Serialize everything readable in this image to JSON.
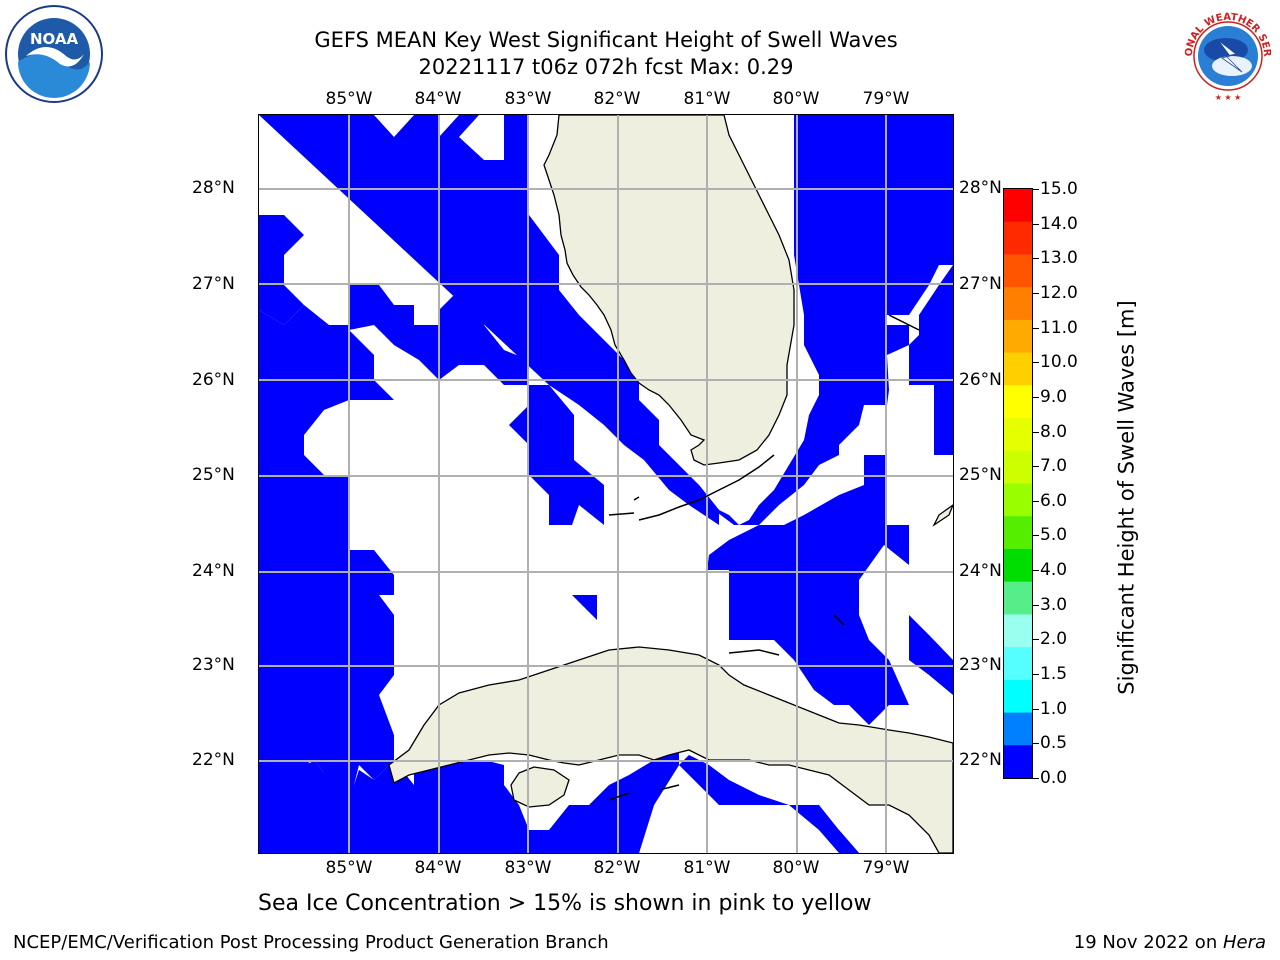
{
  "title": {
    "line1": "GEFS MEAN Key West Significant Height of Swell Waves",
    "line2": "20221117 t06z 072h fcst   Max: 0.29"
  },
  "logos": {
    "left": {
      "icon": "noaa-logo-icon",
      "text": "NOAA"
    },
    "right": {
      "icon": "nws-logo-icon",
      "text": "NATIONAL WEATHER SERVICE"
    }
  },
  "map": {
    "longitude_labels": [
      "85°W",
      "84°W",
      "83°W",
      "82°W",
      "81°W",
      "80°W",
      "79°W"
    ],
    "latitude_labels": [
      "28°N",
      "27°N",
      "26°N",
      "25°N",
      "24°N",
      "23°N",
      "22°N"
    ],
    "colors": {
      "ocean_field": "#0000ff",
      "land": "#efefdf",
      "gridlines": "#b0b0b0",
      "coastline": "#000000",
      "background": "#ffffff"
    }
  },
  "colorbar": {
    "label": "Significant Height of Swell Waves [m]",
    "tick_labels": [
      "15.0",
      "14.0",
      "13.0",
      "12.0",
      "11.0",
      "10.0",
      "9.0",
      "8.0",
      "7.0",
      "6.0",
      "5.0",
      "4.0",
      "3.0",
      "2.0",
      "1.5",
      "1.0",
      "0.5",
      "0.0"
    ],
    "colors_top_to_bottom": [
      "#ff0000",
      "#ff2a00",
      "#ff5500",
      "#ff8000",
      "#ffaa00",
      "#ffd000",
      "#ffff00",
      "#e6ff00",
      "#ccff00",
      "#99ff00",
      "#55ee00",
      "#00dd00",
      "#55ee88",
      "#99ffee",
      "#55ffff",
      "#00ffff",
      "#0080ff",
      "#0000ff"
    ]
  },
  "note": "Sea Ice Concentration > 15% is shown in pink to yellow",
  "footer": {
    "left": "NCEP/EMC/Verification Post Processing Product Generation Branch",
    "right_prefix": "19 Nov 2022 on ",
    "right_host": "Hera"
  }
}
